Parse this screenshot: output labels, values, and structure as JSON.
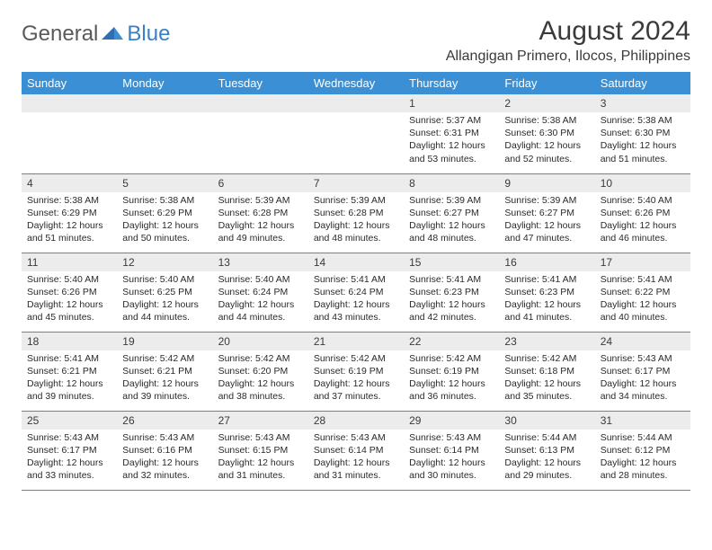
{
  "brand": {
    "general": "General",
    "blue": "Blue"
  },
  "title": "August 2024",
  "location": "Allangigan Primero, Ilocos, Philippines",
  "colors": {
    "header_bg": "#3b8fd4",
    "header_text": "#ffffff",
    "daynum_bg": "#ececec",
    "border": "#3b8fd4",
    "logo_gray": "#5a5a5a",
    "logo_blue": "#3b7fc4"
  },
  "weekdays": [
    "Sunday",
    "Monday",
    "Tuesday",
    "Wednesday",
    "Thursday",
    "Friday",
    "Saturday"
  ],
  "labels": {
    "sunrise": "Sunrise:",
    "sunset": "Sunset:",
    "daylight": "Daylight:"
  },
  "weeks": [
    [
      null,
      null,
      null,
      null,
      {
        "n": "1",
        "sr": "5:37 AM",
        "ss": "6:31 PM",
        "dl": "12 hours and 53 minutes."
      },
      {
        "n": "2",
        "sr": "5:38 AM",
        "ss": "6:30 PM",
        "dl": "12 hours and 52 minutes."
      },
      {
        "n": "3",
        "sr": "5:38 AM",
        "ss": "6:30 PM",
        "dl": "12 hours and 51 minutes."
      }
    ],
    [
      {
        "n": "4",
        "sr": "5:38 AM",
        "ss": "6:29 PM",
        "dl": "12 hours and 51 minutes."
      },
      {
        "n": "5",
        "sr": "5:38 AM",
        "ss": "6:29 PM",
        "dl": "12 hours and 50 minutes."
      },
      {
        "n": "6",
        "sr": "5:39 AM",
        "ss": "6:28 PM",
        "dl": "12 hours and 49 minutes."
      },
      {
        "n": "7",
        "sr": "5:39 AM",
        "ss": "6:28 PM",
        "dl": "12 hours and 48 minutes."
      },
      {
        "n": "8",
        "sr": "5:39 AM",
        "ss": "6:27 PM",
        "dl": "12 hours and 48 minutes."
      },
      {
        "n": "9",
        "sr": "5:39 AM",
        "ss": "6:27 PM",
        "dl": "12 hours and 47 minutes."
      },
      {
        "n": "10",
        "sr": "5:40 AM",
        "ss": "6:26 PM",
        "dl": "12 hours and 46 minutes."
      }
    ],
    [
      {
        "n": "11",
        "sr": "5:40 AM",
        "ss": "6:26 PM",
        "dl": "12 hours and 45 minutes."
      },
      {
        "n": "12",
        "sr": "5:40 AM",
        "ss": "6:25 PM",
        "dl": "12 hours and 44 minutes."
      },
      {
        "n": "13",
        "sr": "5:40 AM",
        "ss": "6:24 PM",
        "dl": "12 hours and 44 minutes."
      },
      {
        "n": "14",
        "sr": "5:41 AM",
        "ss": "6:24 PM",
        "dl": "12 hours and 43 minutes."
      },
      {
        "n": "15",
        "sr": "5:41 AM",
        "ss": "6:23 PM",
        "dl": "12 hours and 42 minutes."
      },
      {
        "n": "16",
        "sr": "5:41 AM",
        "ss": "6:23 PM",
        "dl": "12 hours and 41 minutes."
      },
      {
        "n": "17",
        "sr": "5:41 AM",
        "ss": "6:22 PM",
        "dl": "12 hours and 40 minutes."
      }
    ],
    [
      {
        "n": "18",
        "sr": "5:41 AM",
        "ss": "6:21 PM",
        "dl": "12 hours and 39 minutes."
      },
      {
        "n": "19",
        "sr": "5:42 AM",
        "ss": "6:21 PM",
        "dl": "12 hours and 39 minutes."
      },
      {
        "n": "20",
        "sr": "5:42 AM",
        "ss": "6:20 PM",
        "dl": "12 hours and 38 minutes."
      },
      {
        "n": "21",
        "sr": "5:42 AM",
        "ss": "6:19 PM",
        "dl": "12 hours and 37 minutes."
      },
      {
        "n": "22",
        "sr": "5:42 AM",
        "ss": "6:19 PM",
        "dl": "12 hours and 36 minutes."
      },
      {
        "n": "23",
        "sr": "5:42 AM",
        "ss": "6:18 PM",
        "dl": "12 hours and 35 minutes."
      },
      {
        "n": "24",
        "sr": "5:43 AM",
        "ss": "6:17 PM",
        "dl": "12 hours and 34 minutes."
      }
    ],
    [
      {
        "n": "25",
        "sr": "5:43 AM",
        "ss": "6:17 PM",
        "dl": "12 hours and 33 minutes."
      },
      {
        "n": "26",
        "sr": "5:43 AM",
        "ss": "6:16 PM",
        "dl": "12 hours and 32 minutes."
      },
      {
        "n": "27",
        "sr": "5:43 AM",
        "ss": "6:15 PM",
        "dl": "12 hours and 31 minutes."
      },
      {
        "n": "28",
        "sr": "5:43 AM",
        "ss": "6:14 PM",
        "dl": "12 hours and 31 minutes."
      },
      {
        "n": "29",
        "sr": "5:43 AM",
        "ss": "6:14 PM",
        "dl": "12 hours and 30 minutes."
      },
      {
        "n": "30",
        "sr": "5:44 AM",
        "ss": "6:13 PM",
        "dl": "12 hours and 29 minutes."
      },
      {
        "n": "31",
        "sr": "5:44 AM",
        "ss": "6:12 PM",
        "dl": "12 hours and 28 minutes."
      }
    ]
  ]
}
